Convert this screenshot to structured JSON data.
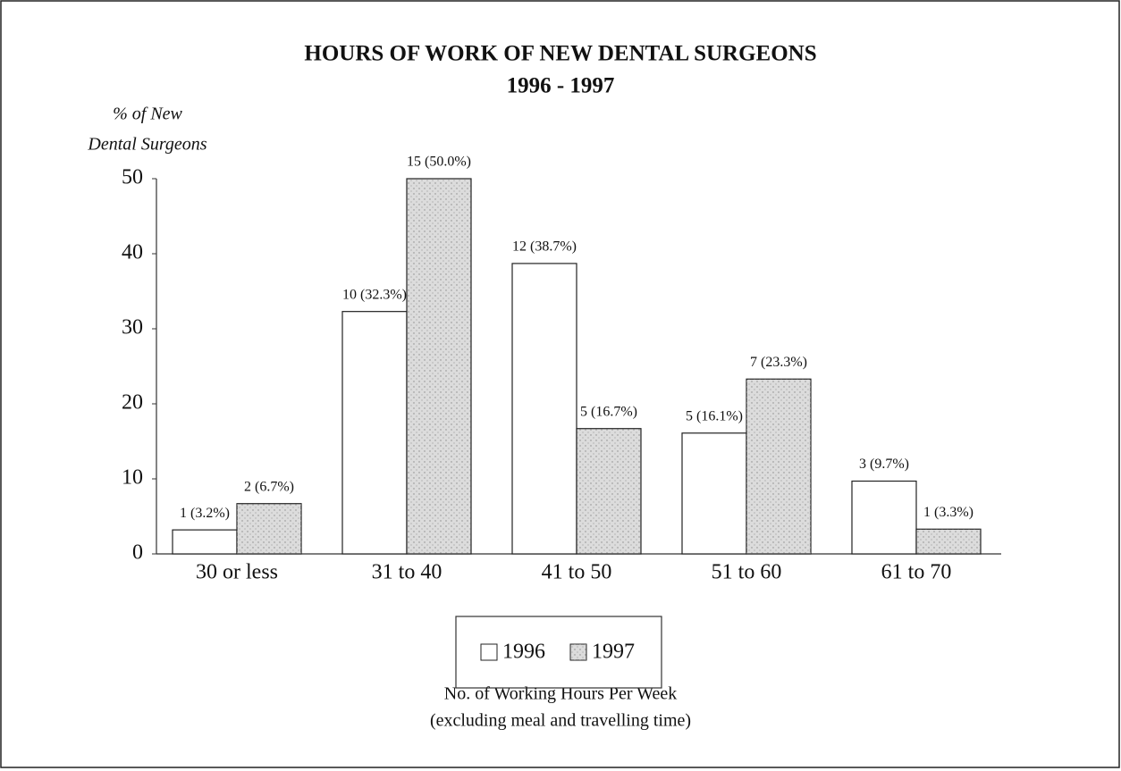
{
  "chart_data": {
    "type": "bar",
    "title": "HOURS OF WORK OF NEW DENTAL SURGEONS",
    "subtitle": "1996 - 1997",
    "ylabel": [
      "% of New",
      "Dental Surgeons"
    ],
    "xlabel": [
      "No. of Working Hours Per Week",
      "(excluding meal and travelling time)"
    ],
    "categories": [
      "30 or less",
      "31 to 40",
      "41 to 50",
      "51 to 60",
      "61 to 70"
    ],
    "series": [
      {
        "name": "1996",
        "color": "#ffffff",
        "values": [
          3.2,
          32.3,
          38.7,
          16.1,
          9.7
        ],
        "value_labels": [
          "1 (3.2%)",
          "10 (32.3%)",
          "12 (38.7%)",
          "5 (16.1%)",
          "3 (9.7%)"
        ]
      },
      {
        "name": "1997",
        "color": "#dcdcdc",
        "values": [
          6.7,
          50.0,
          16.7,
          23.3,
          3.3
        ],
        "value_labels": [
          "2 (6.7%)",
          "15 (50.0%)",
          "5 (16.7%)",
          "7 (23.3%)",
          "1 (3.3%)"
        ]
      }
    ],
    "ylim": [
      0,
      50
    ],
    "yticks": [
      0,
      10,
      20,
      30,
      40,
      50
    ],
    "grid": false,
    "legend": "bottom"
  }
}
